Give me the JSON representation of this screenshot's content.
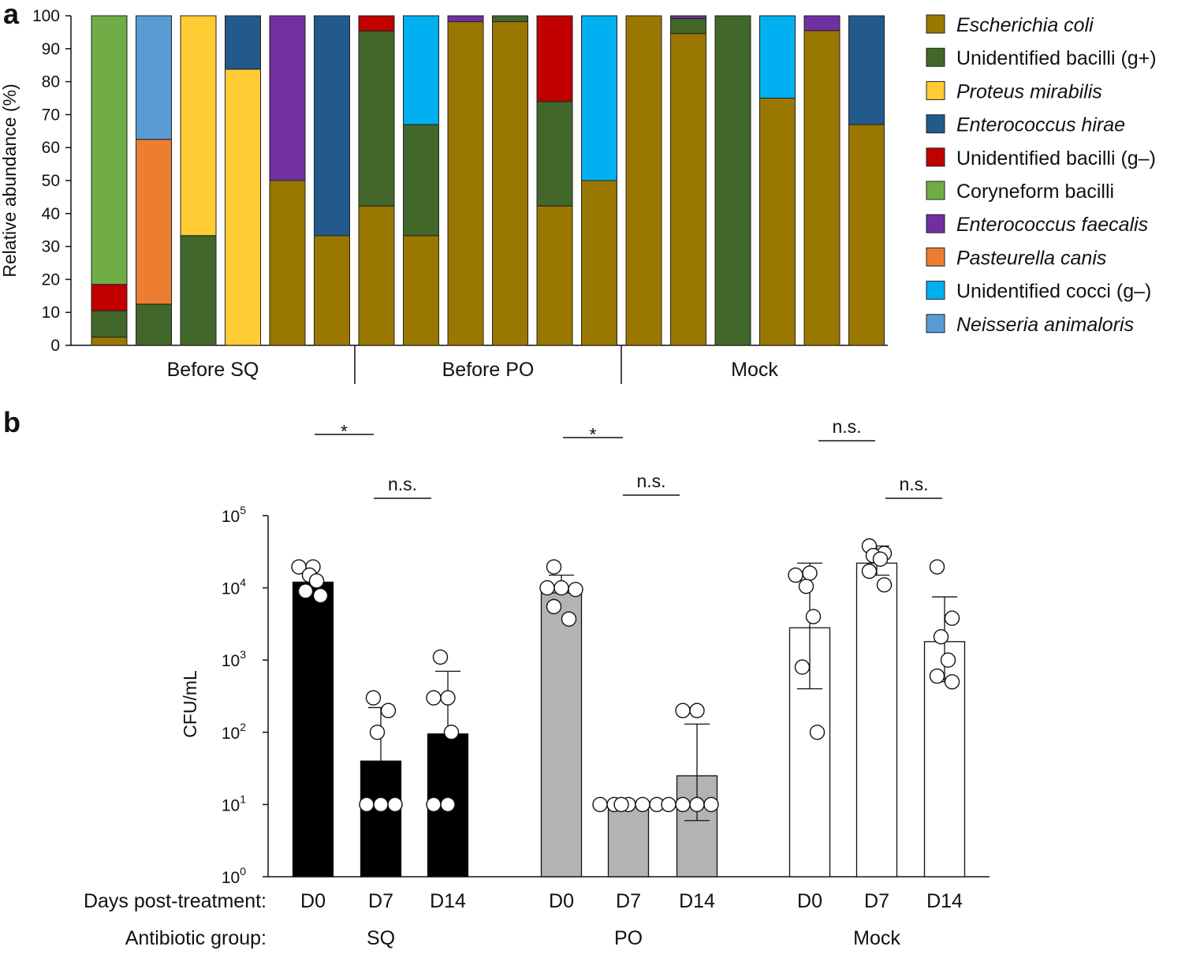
{
  "chart_data": [
    {
      "panel": "a",
      "type": "bar",
      "stacked": true,
      "ylabel": "Relative abundance (%)",
      "ylim": [
        0,
        100
      ],
      "yticks": [
        0,
        10,
        20,
        30,
        40,
        50,
        60,
        70,
        80,
        90,
        100
      ],
      "groups": [
        {
          "label": "Before SQ",
          "bars": [
            0,
            1,
            2,
            3,
            4,
            5
          ]
        },
        {
          "label": "Before PO",
          "bars": [
            6,
            7,
            8,
            9,
            10,
            11
          ]
        },
        {
          "label": "Mock",
          "bars": [
            12,
            13,
            14,
            15,
            16,
            17
          ]
        }
      ],
      "series": [
        {
          "name": "Escherichia coli",
          "italic": true,
          "color": "#9a7700"
        },
        {
          "name": "Unidentified bacilli (g+)",
          "italic": false,
          "color": "#41672a"
        },
        {
          "name": "Proteus mirabilis",
          "italic": true,
          "color": "#ffcc33"
        },
        {
          "name": "Enterococcus hirae",
          "italic": true,
          "color": "#225a8c"
        },
        {
          "name": "Unidentified bacilli (g–)",
          "italic": false,
          "color": "#c20000"
        },
        {
          "name": "Coryneform bacilli",
          "italic": false,
          "color": "#70ad47"
        },
        {
          "name": "Enterococcus faecalis",
          "italic": true,
          "color": "#7030a0"
        },
        {
          "name": "Pasteurella canis",
          "italic": true,
          "color": "#ed7d31"
        },
        {
          "name": "Unidentified cocci (g–)",
          "italic": false,
          "color": "#00b0f0"
        },
        {
          "name": "Neisseria animaloris",
          "italic": true,
          "color": "#5b9bd5"
        }
      ],
      "bars": [
        [
          {
            "s": 0,
            "v": 2.5
          },
          {
            "s": 1,
            "v": 8
          },
          {
            "s": 4,
            "v": 8
          },
          {
            "s": 5,
            "v": 81.5
          }
        ],
        [
          {
            "s": 1,
            "v": 12.5
          },
          {
            "s": 7,
            "v": 50
          },
          {
            "s": 9,
            "v": 37.5
          }
        ],
        [
          {
            "s": 1,
            "v": 33.3
          },
          {
            "s": 2,
            "v": 66.7
          }
        ],
        [
          {
            "s": 2,
            "v": 83.8
          },
          {
            "s": 3,
            "v": 16.2
          }
        ],
        [
          {
            "s": 0,
            "v": 50
          },
          {
            "s": 6,
            "v": 50
          }
        ],
        [
          {
            "s": 0,
            "v": 33.3
          },
          {
            "s": 3,
            "v": 66.7
          }
        ],
        [
          {
            "s": 0,
            "v": 42.3
          },
          {
            "s": 1,
            "v": 53.1
          },
          {
            "s": 4,
            "v": 4.6
          }
        ],
        [
          {
            "s": 0,
            "v": 33.3
          },
          {
            "s": 1,
            "v": 33.7
          },
          {
            "s": 8,
            "v": 33
          }
        ],
        [
          {
            "s": 0,
            "v": 98.2
          },
          {
            "s": 6,
            "v": 1.8
          }
        ],
        [
          {
            "s": 0,
            "v": 98.2
          },
          {
            "s": 1,
            "v": 1.8
          }
        ],
        [
          {
            "s": 0,
            "v": 42.3
          },
          {
            "s": 1,
            "v": 31.7
          },
          {
            "s": 4,
            "v": 26
          }
        ],
        [
          {
            "s": 0,
            "v": 50
          },
          {
            "s": 8,
            "v": 50
          }
        ],
        [
          {
            "s": 0,
            "v": 100
          }
        ],
        [
          {
            "s": 0,
            "v": 94.6
          },
          {
            "s": 1,
            "v": 4.6
          },
          {
            "s": 6,
            "v": 0.8
          }
        ],
        [
          {
            "s": 1,
            "v": 100
          }
        ],
        [
          {
            "s": 0,
            "v": 75
          },
          {
            "s": 8,
            "v": 25
          }
        ],
        [
          {
            "s": 0,
            "v": 95.5
          },
          {
            "s": 6,
            "v": 4.5
          }
        ],
        [
          {
            "s": 0,
            "v": 67
          },
          {
            "s": 3,
            "v": 33
          }
        ]
      ]
    },
    {
      "panel": "b",
      "type": "bar",
      "yscale": "log",
      "ylabel": "CFU/mL",
      "ylim": [
        1,
        100000
      ],
      "yticks": [
        {
          "base": "10",
          "exp": "0"
        },
        {
          "base": "10",
          "exp": "1"
        },
        {
          "base": "10",
          "exp": "2"
        },
        {
          "base": "10",
          "exp": "3"
        },
        {
          "base": "10",
          "exp": "4"
        },
        {
          "base": "10",
          "exp": "5"
        }
      ],
      "row_labels": {
        "days": "Days post-treatment:",
        "group": "Antibiotic group:"
      },
      "groups": [
        {
          "label": "SQ",
          "color": "#000000",
          "bars": [
            {
              "label": "D0",
              "mean": 12000,
              "err_high": null,
              "err_low": null,
              "points": [
                19500,
                19500,
                15000,
                12500,
                9000,
                7800
              ]
            },
            {
              "label": "D7",
              "mean": 40,
              "err_high": 220,
              "err_low": null,
              "points": [
                300,
                200,
                100,
                10,
                10,
                10
              ]
            },
            {
              "label": "D14",
              "mean": 95,
              "err_high": 700,
              "err_low": null,
              "points": [
                1100,
                300,
                300,
                100,
                10,
                10
              ]
            }
          ]
        },
        {
          "label": "PO",
          "color": "#b3b3b3",
          "bars": [
            {
              "label": "D0",
              "mean": 8500,
              "err_high": 15000,
              "err_low": null,
              "points": [
                19500,
                10000,
                10000,
                9500,
                5500,
                3700
              ]
            },
            {
              "label": "D7",
              "mean": 10,
              "err_high": null,
              "err_low": null,
              "points": [
                10,
                10,
                10,
                10,
                10,
                10
              ]
            },
            {
              "label": "D14",
              "mean": 25,
              "err_high": 130,
              "err_low": 6,
              "points": [
                200,
                200,
                10,
                10,
                10,
                10
              ]
            }
          ]
        },
        {
          "label": "Mock",
          "color": "#ffffff",
          "bars": [
            {
              "label": "D0",
              "mean": 2800,
              "err_high": 22000,
              "err_low": 400,
              "points": [
                16000,
                15000,
                10500,
                4000,
                800,
                100
              ]
            },
            {
              "label": "D7",
              "mean": 22000,
              "err_high": 38000,
              "err_low": 15000,
              "points": [
                38000,
                30000,
                28000,
                25000,
                17000,
                11000
              ]
            },
            {
              "label": "D14",
              "mean": 1800,
              "err_high": 7500,
              "err_low": 500,
              "points": [
                19500,
                3800,
                2100,
                1000,
                600,
                500
              ]
            }
          ]
        }
      ],
      "significance": [
        {
          "label": "*",
          "group": 0,
          "tier": "top"
        },
        {
          "label": "n.s.",
          "group": 0,
          "tier": "bottom"
        },
        {
          "label": "*",
          "group": 1,
          "tier": "top"
        },
        {
          "label": "n.s.",
          "group": 1,
          "tier": "bottom"
        },
        {
          "label": "n.s.",
          "group": 2,
          "tier": "top"
        },
        {
          "label": "n.s.",
          "group": 2,
          "tier": "bottom"
        }
      ]
    }
  ],
  "panel_labels": {
    "a": "a",
    "b": "b"
  }
}
